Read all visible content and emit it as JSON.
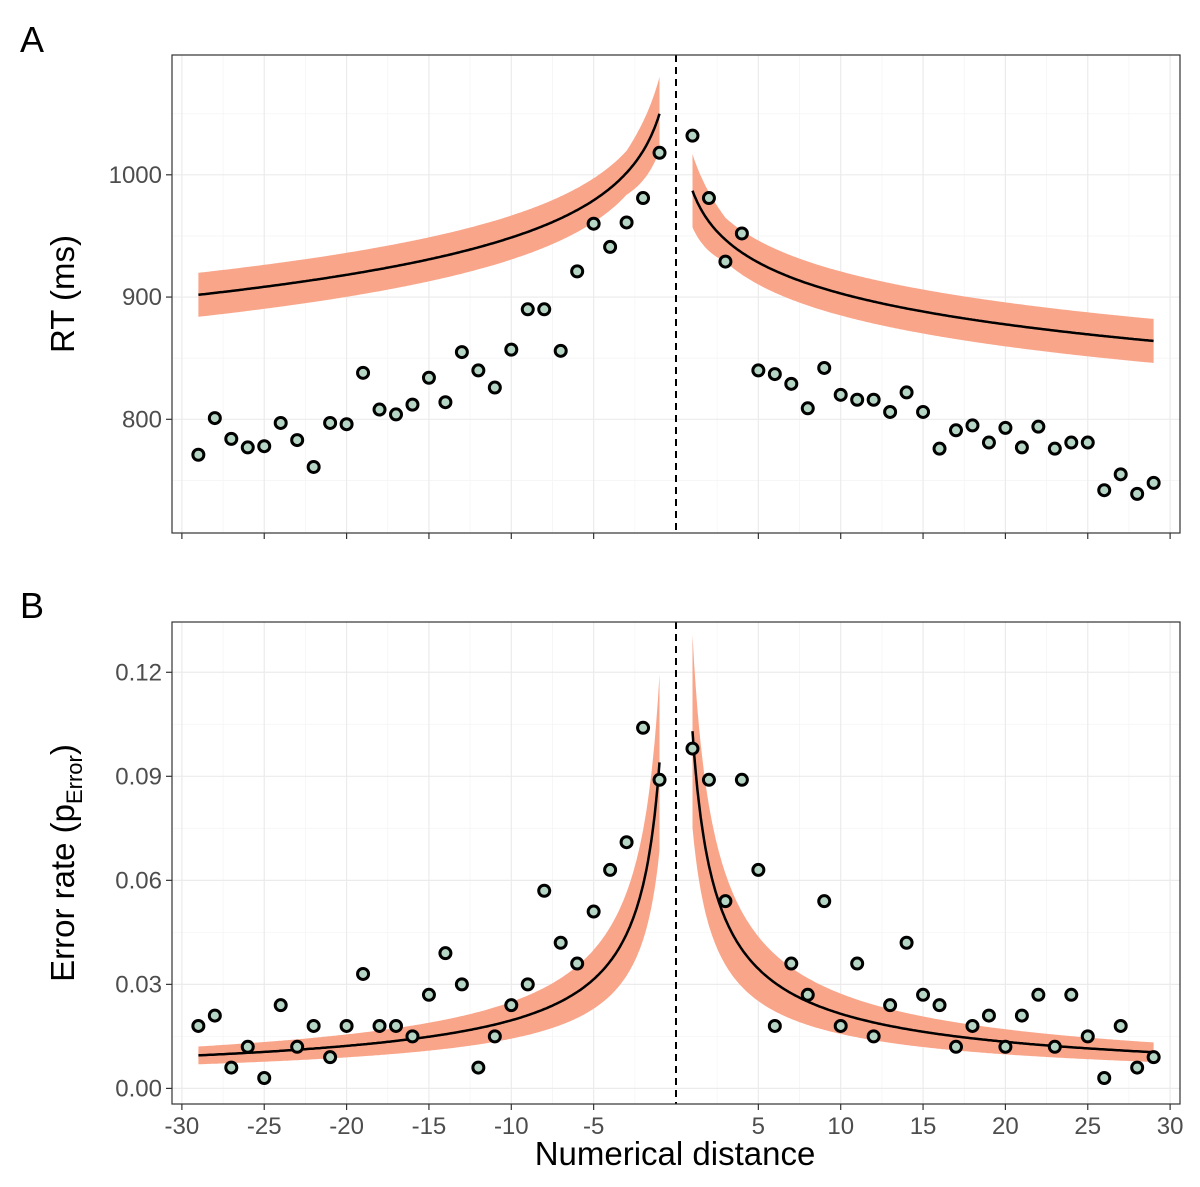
{
  "colors": {
    "ribbon": "#f9a58a",
    "point_fill": "#b5d6c4",
    "point_stroke": "#000000",
    "line": "#000000"
  },
  "chart_data": [
    {
      "panel": "A",
      "type": "scatter",
      "title": "",
      "xlabel": "",
      "ylabel": "RT (ms)",
      "ylabel_sub": "",
      "xlim": [
        -30.6,
        30.6
      ],
      "ylim": [
        707,
        1098
      ],
      "yticks": [
        800,
        900,
        1000
      ],
      "ytick_labels": [
        "800",
        "900",
        "1000"
      ],
      "xticks": [
        -30,
        -25,
        -20,
        -15,
        -10,
        -5,
        5,
        10,
        15,
        20,
        25,
        30
      ],
      "xtick_labels": [],
      "show_x_labels": false,
      "grid": true,
      "reference_line_x": 0,
      "fit": {
        "left": {
          "a": 1050,
          "b": 44,
          "c": 0.3
        },
        "right": {
          "a": 987,
          "b": 36.5,
          "c": 0.3
        },
        "ribbon_halfwidth": 18
      },
      "points": [
        {
          "x": -29,
          "y": 771
        },
        {
          "x": -28,
          "y": 801
        },
        {
          "x": -27,
          "y": 784
        },
        {
          "x": -26,
          "y": 777
        },
        {
          "x": -25,
          "y": 778
        },
        {
          "x": -24,
          "y": 797
        },
        {
          "x": -23,
          "y": 783
        },
        {
          "x": -22,
          "y": 761
        },
        {
          "x": -21,
          "y": 797
        },
        {
          "x": -20,
          "y": 796
        },
        {
          "x": -19,
          "y": 838
        },
        {
          "x": -18,
          "y": 808
        },
        {
          "x": -17,
          "y": 804
        },
        {
          "x": -16,
          "y": 812
        },
        {
          "x": -15,
          "y": 834
        },
        {
          "x": -14,
          "y": 814
        },
        {
          "x": -13,
          "y": 855
        },
        {
          "x": -12,
          "y": 840
        },
        {
          "x": -11,
          "y": 826
        },
        {
          "x": -10,
          "y": 857
        },
        {
          "x": -9,
          "y": 890
        },
        {
          "x": -8,
          "y": 890
        },
        {
          "x": -7,
          "y": 856
        },
        {
          "x": -6,
          "y": 921
        },
        {
          "x": -5,
          "y": 960
        },
        {
          "x": -4,
          "y": 941
        },
        {
          "x": -3,
          "y": 961
        },
        {
          "x": -2,
          "y": 981
        },
        {
          "x": -1,
          "y": 1018
        },
        {
          "x": 1,
          "y": 1032
        },
        {
          "x": 2,
          "y": 981
        },
        {
          "x": 3,
          "y": 929
        },
        {
          "x": 4,
          "y": 952
        },
        {
          "x": 5,
          "y": 840
        },
        {
          "x": 6,
          "y": 837
        },
        {
          "x": 7,
          "y": 829
        },
        {
          "x": 8,
          "y": 809
        },
        {
          "x": 9,
          "y": 842
        },
        {
          "x": 10,
          "y": 820
        },
        {
          "x": 11,
          "y": 816
        },
        {
          "x": 12,
          "y": 816
        },
        {
          "x": 13,
          "y": 806
        },
        {
          "x": 14,
          "y": 822
        },
        {
          "x": 15,
          "y": 806
        },
        {
          "x": 16,
          "y": 776
        },
        {
          "x": 17,
          "y": 791
        },
        {
          "x": 18,
          "y": 795
        },
        {
          "x": 19,
          "y": 781
        },
        {
          "x": 20,
          "y": 793
        },
        {
          "x": 21,
          "y": 777
        },
        {
          "x": 22,
          "y": 794
        },
        {
          "x": 23,
          "y": 776
        },
        {
          "x": 24,
          "y": 781
        },
        {
          "x": 25,
          "y": 781
        },
        {
          "x": 26,
          "y": 742
        },
        {
          "x": 27,
          "y": 755
        },
        {
          "x": 28,
          "y": 739
        },
        {
          "x": 29,
          "y": 748
        }
      ]
    },
    {
      "panel": "B",
      "type": "scatter",
      "title": "",
      "xlabel": "Numerical distance",
      "ylabel": "Error rate (p",
      "ylabel_sub": "Error",
      "ylabel_end": ")",
      "xlim": [
        -30.6,
        30.6
      ],
      "ylim": [
        -0.0045,
        0.1345
      ],
      "yticks": [
        0.0,
        0.03,
        0.06,
        0.09,
        0.12
      ],
      "ytick_labels": [
        "0.00",
        "0.03",
        "0.06",
        "0.09",
        "0.12"
      ],
      "xticks": [
        -30,
        -25,
        -20,
        -15,
        -10,
        -5,
        5,
        10,
        15,
        20,
        25,
        30
      ],
      "xtick_labels": [
        "-30",
        "-25",
        "-20",
        "-15",
        "-10",
        "-5",
        "5",
        "10",
        "15",
        "20",
        "25",
        "30"
      ],
      "show_x_labels": true,
      "grid": true,
      "reference_line_x": 0,
      "fit": {
        "left": {
          "a": 0.094,
          "b": 0.0,
          "c": 0.68
        },
        "right": {
          "a": 0.103,
          "b": 0.0,
          "c": 0.68
        },
        "ribbon_halfwidth_frac": 0.27
      },
      "points": [
        {
          "x": -29,
          "y": 0.018
        },
        {
          "x": -28,
          "y": 0.021
        },
        {
          "x": -27,
          "y": 0.006
        },
        {
          "x": -26,
          "y": 0.012
        },
        {
          "x": -25,
          "y": 0.003
        },
        {
          "x": -24,
          "y": 0.024
        },
        {
          "x": -23,
          "y": 0.012
        },
        {
          "x": -22,
          "y": 0.018
        },
        {
          "x": -21,
          "y": 0.009
        },
        {
          "x": -20,
          "y": 0.018
        },
        {
          "x": -19,
          "y": 0.033
        },
        {
          "x": -18,
          "y": 0.018
        },
        {
          "x": -17,
          "y": 0.018
        },
        {
          "x": -16,
          "y": 0.015
        },
        {
          "x": -15,
          "y": 0.027
        },
        {
          "x": -14,
          "y": 0.039
        },
        {
          "x": -13,
          "y": 0.03
        },
        {
          "x": -12,
          "y": 0.006
        },
        {
          "x": -11,
          "y": 0.015
        },
        {
          "x": -10,
          "y": 0.024
        },
        {
          "x": -9,
          "y": 0.03
        },
        {
          "x": -8,
          "y": 0.057
        },
        {
          "x": -7,
          "y": 0.042
        },
        {
          "x": -6,
          "y": 0.036
        },
        {
          "x": -5,
          "y": 0.051
        },
        {
          "x": -4,
          "y": 0.063
        },
        {
          "x": -3,
          "y": 0.071
        },
        {
          "x": -2,
          "y": 0.104
        },
        {
          "x": -1,
          "y": 0.089
        },
        {
          "x": 1,
          "y": 0.098
        },
        {
          "x": 2,
          "y": 0.089
        },
        {
          "x": 3,
          "y": 0.054
        },
        {
          "x": 4,
          "y": 0.089
        },
        {
          "x": 5,
          "y": 0.063
        },
        {
          "x": 6,
          "y": 0.018
        },
        {
          "x": 7,
          "y": 0.036
        },
        {
          "x": 8,
          "y": 0.027
        },
        {
          "x": 9,
          "y": 0.054
        },
        {
          "x": 10,
          "y": 0.018
        },
        {
          "x": 11,
          "y": 0.036
        },
        {
          "x": 12,
          "y": 0.015
        },
        {
          "x": 13,
          "y": 0.024
        },
        {
          "x": 14,
          "y": 0.042
        },
        {
          "x": 15,
          "y": 0.027
        },
        {
          "x": 16,
          "y": 0.024
        },
        {
          "x": 17,
          "y": 0.012
        },
        {
          "x": 18,
          "y": 0.018
        },
        {
          "x": 19,
          "y": 0.021
        },
        {
          "x": 20,
          "y": 0.012
        },
        {
          "x": 21,
          "y": 0.021
        },
        {
          "x": 22,
          "y": 0.027
        },
        {
          "x": 23,
          "y": 0.012
        },
        {
          "x": 24,
          "y": 0.027
        },
        {
          "x": 25,
          "y": 0.015
        },
        {
          "x": 26,
          "y": 0.003
        },
        {
          "x": 27,
          "y": 0.018
        },
        {
          "x": 28,
          "y": 0.006
        },
        {
          "x": 29,
          "y": 0.009
        }
      ]
    }
  ]
}
